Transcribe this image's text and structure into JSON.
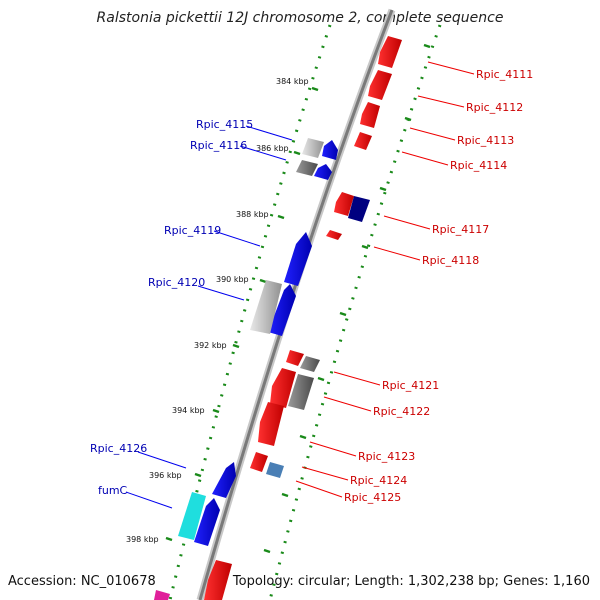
{
  "title": "Ralstonia pickettii 12J chromosome 2, complete sequence",
  "accession_text": "Accession: NC_010678",
  "summary_text": "Topology: circular; Length: 1,302,238 bp; Genes: 1,160",
  "colors": {
    "forward_gene": "#0000ee",
    "reverse_gene": "#ee0000",
    "label_forward": "#0000b3",
    "label_reverse": "#cc0000",
    "backbone": "#808080",
    "dotted_ring": "#1a8a1a"
  },
  "scale_ticks": [
    {
      "label": "384 kbp",
      "kb": 384
    },
    {
      "label": "386 kbp",
      "kb": 386
    },
    {
      "label": "388 kbp",
      "kb": 388
    },
    {
      "label": "390 kbp",
      "kb": 390
    },
    {
      "label": "392 kbp",
      "kb": 392
    },
    {
      "label": "394 kbp",
      "kb": 394
    },
    {
      "label": "396 kbp",
      "kb": 396
    },
    {
      "label": "398 kbp",
      "kb": 398
    }
  ],
  "gene_labels_forward": [
    {
      "label": "Rpic_4115"
    },
    {
      "label": "Rpic_4116"
    },
    {
      "label": "Rpic_4119"
    },
    {
      "label": "Rpic_4120"
    },
    {
      "label": "Rpic_4126"
    },
    {
      "label": "fumC"
    }
  ],
  "gene_labels_reverse": [
    {
      "label": "Rpic_4111"
    },
    {
      "label": "Rpic_4112"
    },
    {
      "label": "Rpic_4113"
    },
    {
      "label": "Rpic_4114"
    },
    {
      "label": "Rpic_4117"
    },
    {
      "label": "Rpic_4118"
    },
    {
      "label": "Rpic_4121"
    },
    {
      "label": "Rpic_4122"
    },
    {
      "label": "Rpic_4123"
    },
    {
      "label": "Rpic_4124"
    },
    {
      "label": "Rpic_4125"
    }
  ]
}
